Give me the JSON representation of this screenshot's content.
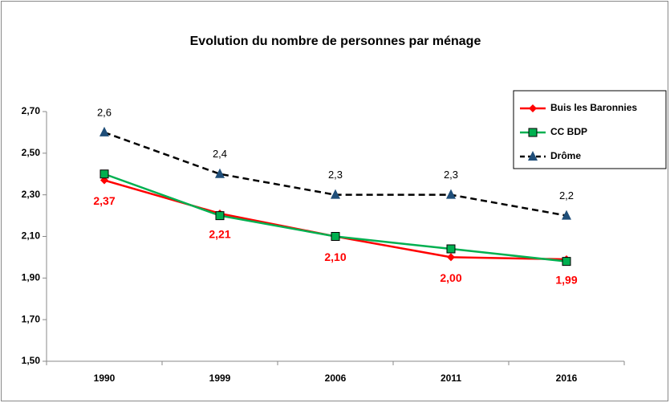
{
  "chart_data": {
    "type": "line",
    "title": "Evolution du nombre de personnes par ménage",
    "categories": [
      "1990",
      "1999",
      "2006",
      "2011",
      "2016"
    ],
    "ylim": [
      1.5,
      2.7
    ],
    "yticks": [
      {
        "value": 1.5,
        "label": "1,50"
      },
      {
        "value": 1.7,
        "label": "1,70"
      },
      {
        "value": 1.9,
        "label": "1,90"
      },
      {
        "value": 2.1,
        "label": "2,10"
      },
      {
        "value": 2.3,
        "label": "2,30"
      },
      {
        "value": 2.5,
        "label": "2,50"
      },
      {
        "value": 2.7,
        "label": "2,70"
      }
    ],
    "legend": "right",
    "series": [
      {
        "name": "Buis les Baronnies",
        "color": "#ff0000",
        "marker": "diamond",
        "values": [
          2.37,
          2.21,
          2.1,
          2.0,
          1.99
        ],
        "value_labels": [
          "2,37",
          "2,21",
          "2,10",
          "2,00",
          "1,99"
        ]
      },
      {
        "name": "CC BDP",
        "color": "#00b050",
        "marker": "square",
        "values": [
          2.4,
          2.2,
          2.1,
          2.04,
          1.98
        ]
      },
      {
        "name": "Drôme",
        "color": "#000000",
        "marker": "triangle",
        "line_style": "dashed",
        "values": [
          2.6,
          2.4,
          2.3,
          2.3,
          2.2
        ],
        "value_labels": [
          "2,6",
          "2,4",
          "2,3",
          "2,3",
          "2,2"
        ]
      }
    ]
  }
}
